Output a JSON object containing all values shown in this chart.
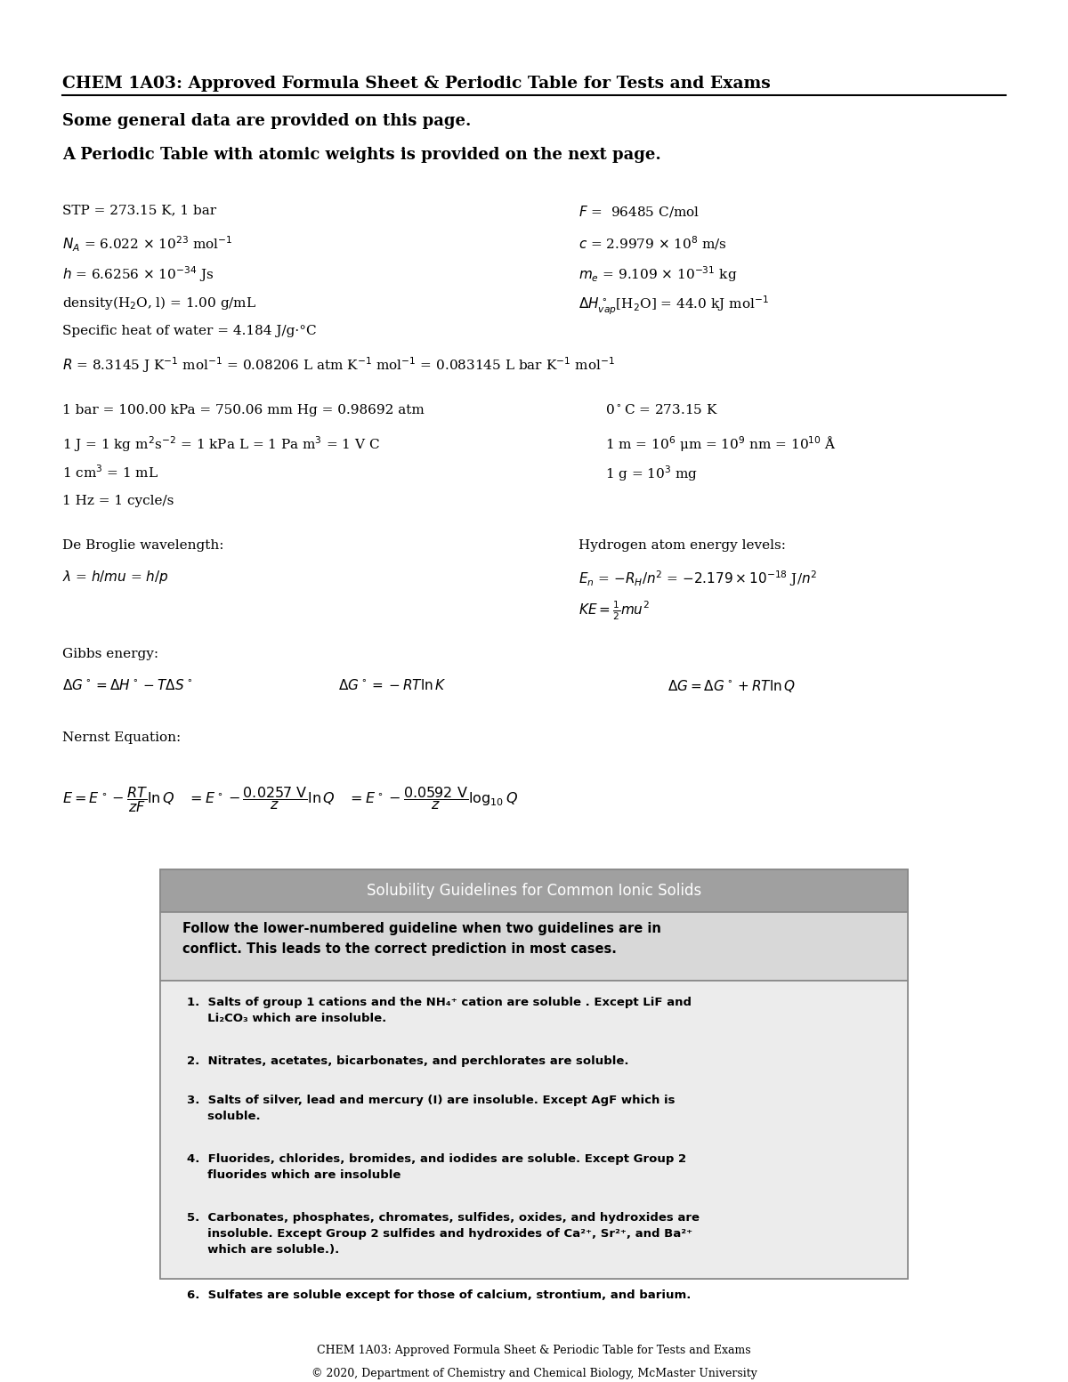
{
  "bg_color": "#ffffff",
  "title": "CHEM 1A03: Approved Formula Sheet & Periodic Table for Tests and Exams",
  "subtitle1": "Some general data are provided on this page.",
  "subtitle2": "A Periodic Table with atomic weights is provided on the next page.",
  "footer1": "CHEM 1A03: Approved Formula Sheet & Periodic Table for Tests and Exams",
  "footer2": "© 2020, Department of Chemistry and Chemical Biology, McMaster University",
  "solubility_header": "Solubility Guidelines for Common Ionic Solids",
  "solubility_intro": "Follow the lower-numbered guideline when two guidelines are in\nconflict. This leads to the correct prediction in most cases.",
  "solubility_items": [
    "Salts of group 1 cations and the NH₄⁺ cation are soluble . Except LiF and\n     Li₂CO₃ which are insoluble.",
    "Nitrates, acetates, bicarbonates, and perchlorates are soluble.",
    "Salts of silver, lead and mercury (I) are insoluble. Except AgF which is\n     soluble.",
    "Fluorides, chlorides, bromides, and iodides are soluble. Except Group 2\n     fluorides which are insoluble",
    "Carbonates, phosphates, chromates, sulfides, oxides, and hydroxides are\n     insoluble. Except Group 2 sulfides and hydroxides of Ca²⁺, Sr²⁺, and Ba²⁺\n     which are soluble.).",
    "Sulfates are soluble except for those of calcium, strontium, and barium."
  ],
  "header_color": "#a0a0a0",
  "solubility_bg": "#d8d8d8",
  "solubility_list_bg": "#ececec"
}
